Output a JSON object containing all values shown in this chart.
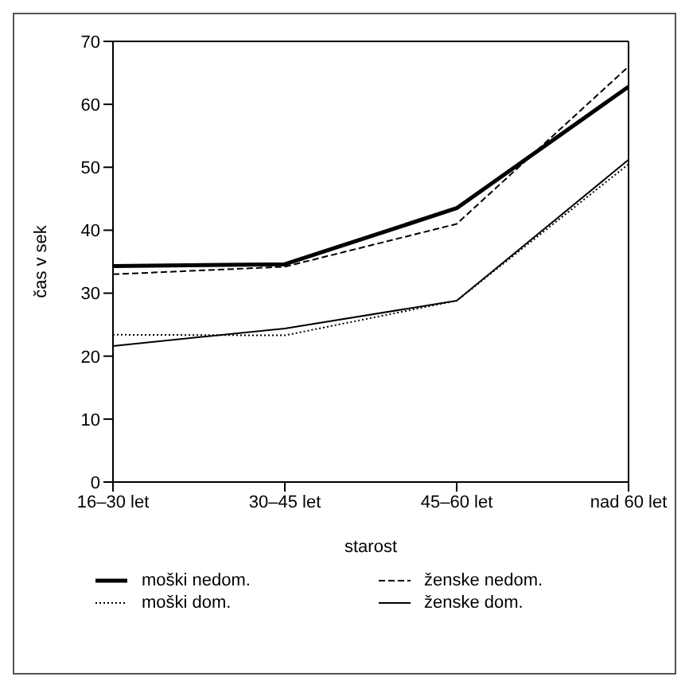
{
  "chart_data": {
    "type": "line",
    "xlabel": "starost",
    "ylabel": "čas v sek",
    "categories": [
      "16–30 let",
      "30–45 let",
      "45–60 let",
      "nad 60 let"
    ],
    "ylim": [
      0,
      70
    ],
    "yticks": [
      0,
      10,
      20,
      30,
      40,
      50,
      60,
      70
    ],
    "grid": false,
    "legend": "bottom",
    "marker": "none",
    "series": [
      {
        "name": "moški nedom.",
        "color": "#000000",
        "line_style": "solid",
        "values": [
          34.3,
          34.6,
          43.5,
          62.8
        ]
      },
      {
        "name": "moški dom.",
        "color": "#000000",
        "line_style": "dotted",
        "values": [
          23.4,
          23.3,
          28.8,
          50.5
        ]
      },
      {
        "name": "ženske nedom.",
        "color": "#000000",
        "line_style": "dashed",
        "values": [
          33,
          34.2,
          41,
          66
        ]
      },
      {
        "name": "ženske dom.",
        "color": "#000000",
        "line_style": "solid",
        "values": [
          21.6,
          24.4,
          28.8,
          51.2
        ]
      }
    ]
  }
}
